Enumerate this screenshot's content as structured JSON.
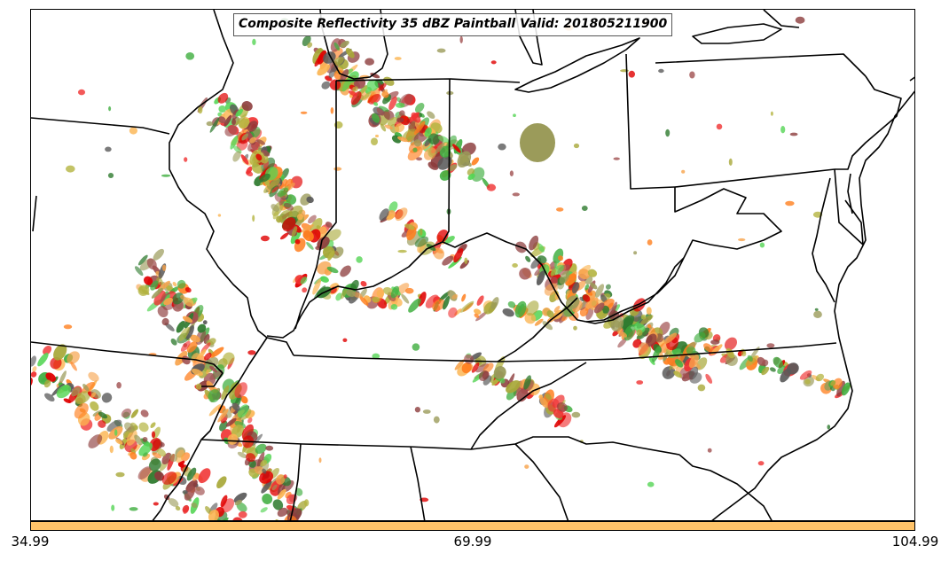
{
  "title": "Composite Reflectivity 35 dBZ Paintball Valid: 201805211900",
  "colorbar": {
    "color": "#FFC369",
    "ticks": [
      "34.99",
      "69.99",
      "104.99"
    ]
  },
  "paintball_colors": [
    "#e00000",
    "#f03030",
    "#ff7f1e",
    "#f7a24a",
    "#fbb450",
    "#a8a838",
    "#b4b440",
    "#8c3c3c",
    "#a05050",
    "#3fae3f",
    "#55d555",
    "#2e7a2e",
    "#5a5a5a",
    "#9b9b5a"
  ],
  "map": {
    "boundary_color": "#000000",
    "land_color": "#ffffff"
  }
}
